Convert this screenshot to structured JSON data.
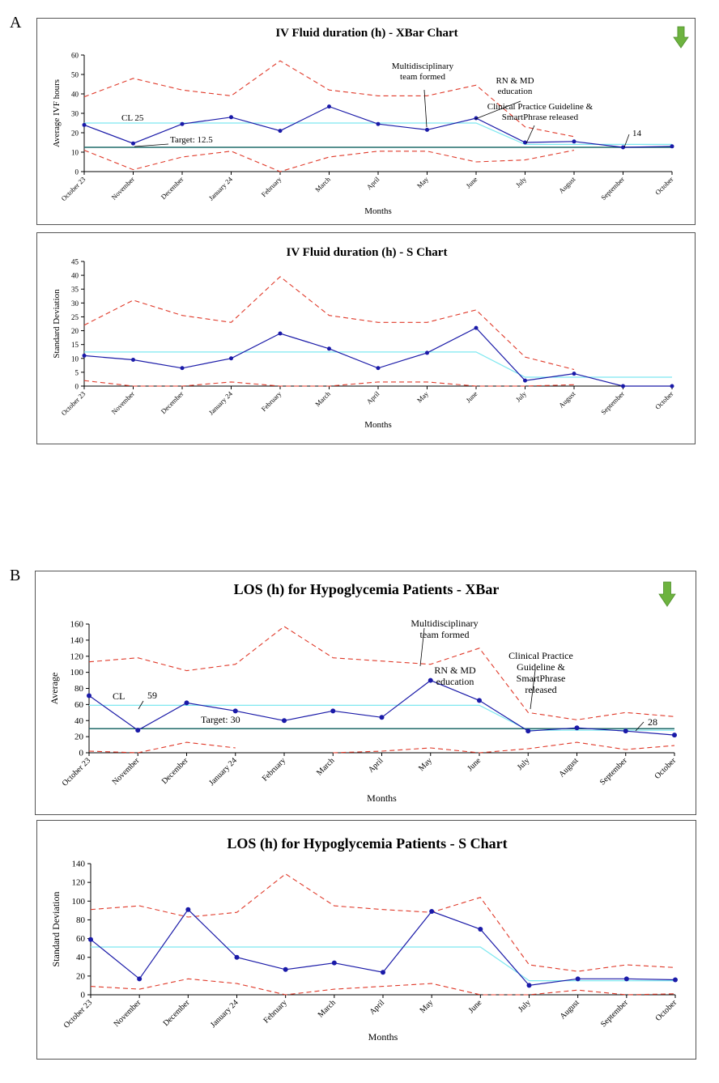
{
  "panel_labels": {
    "a": "A",
    "b": "B"
  },
  "months": [
    "October 23",
    "November",
    "December",
    "January 24",
    "February",
    "March",
    "April",
    "May",
    "June",
    "July",
    "August",
    "September",
    "October"
  ],
  "colors": {
    "series": "#1a1aa8",
    "limits": "#e03a2a",
    "center": "#7ee8f0",
    "target": "#1f6b6a",
    "arrow": "#6db33f"
  },
  "icons": {
    "trend": "down-arrow-icon"
  },
  "chart_data": [
    {
      "type": "line",
      "title": "IV Fluid duration (h) - XBar Chart",
      "xlabel": "Months",
      "ylabel": "Average IVF hours",
      "ylim": [
        0,
        60
      ],
      "yticks": [
        0,
        10,
        20,
        30,
        40,
        50,
        60
      ],
      "grid": false,
      "series": [
        {
          "values": [
            24,
            14.5,
            24.5,
            28,
            21,
            33.5,
            24.5,
            21.5,
            27.5,
            15,
            15.5,
            12.5,
            13
          ]
        },
        {
          "values": [
            38.5,
            48,
            42,
            39,
            57,
            42,
            39,
            39,
            44.5,
            23,
            18,
            null,
            null
          ]
        },
        {
          "values": [
            11,
            1,
            7.5,
            10.5,
            0,
            7.5,
            10.5,
            10.5,
            5,
            6,
            11,
            null,
            null
          ]
        },
        {
          "values": [
            25,
            25,
            25,
            25,
            25,
            25,
            25,
            25,
            25,
            14,
            14,
            14,
            14
          ]
        },
        {
          "values": [
            12.5,
            12.5,
            12.5,
            12.5,
            12.5,
            12.5,
            12.5,
            12.5,
            12.5,
            12.5,
            12.5,
            12.5,
            12.5
          ]
        }
      ],
      "annotations": [
        {
          "text": "CL 25"
        },
        {
          "text": "Target: 12.5"
        },
        {
          "text": "Multidisciplinary team formed"
        },
        {
          "text": "RN & MD education"
        },
        {
          "text": "Clinical Practice Guideline & SmartPhrase released"
        },
        {
          "text": "14"
        }
      ]
    },
    {
      "type": "line",
      "title": "IV Fluid duration (h) - S Chart",
      "xlabel": "Months",
      "ylabel": "Standard Deviation",
      "ylim": [
        0,
        45
      ],
      "yticks": [
        0,
        5,
        10,
        15,
        20,
        25,
        30,
        35,
        40,
        45
      ],
      "grid": false,
      "series": [
        {
          "values": [
            11,
            9.5,
            6.5,
            10,
            19,
            13.5,
            6.5,
            12,
            21,
            2,
            4.5,
            0,
            0
          ]
        },
        {
          "values": [
            22,
            31,
            25.5,
            23,
            39.5,
            25.5,
            23,
            23,
            27.5,
            10.5,
            6,
            null,
            null
          ]
        },
        {
          "values": [
            2,
            0,
            0,
            1.5,
            0,
            0,
            1.5,
            1.5,
            0,
            0,
            0.5,
            null,
            null
          ]
        },
        {
          "values": [
            12.3,
            12.3,
            12.3,
            12.3,
            12.3,
            12.3,
            12.3,
            12.3,
            12.3,
            3.2,
            3.2,
            3.2,
            3.2
          ]
        }
      ],
      "annotations": []
    },
    {
      "type": "line",
      "title": "LOS (h) for Hypoglycemia Patients - XBar",
      "xlabel": "Months",
      "ylabel": "Average",
      "ylim": [
        0,
        160
      ],
      "yticks": [
        0,
        20,
        40,
        60,
        80,
        100,
        120,
        140,
        160
      ],
      "grid": false,
      "series": [
        {
          "values": [
            71,
            28,
            62,
            52,
            40,
            52,
            44,
            90,
            65,
            27,
            31,
            27,
            22
          ]
        },
        {
          "values": [
            113,
            118,
            102,
            110,
            157,
            118,
            114,
            110,
            130,
            50,
            41,
            50,
            45
          ]
        },
        {
          "values": [
            2,
            0,
            13,
            6,
            null,
            0,
            2,
            6,
            0,
            5,
            13,
            4,
            9
          ]
        },
        {
          "values": [
            59,
            59,
            59,
            59,
            59,
            59,
            59,
            59,
            59,
            28,
            28,
            28,
            28
          ]
        },
        {
          "values": [
            30,
            30,
            30,
            30,
            30,
            30,
            30,
            30,
            30,
            30,
            30,
            30,
            30
          ]
        }
      ],
      "annotations": [
        {
          "text": "CL"
        },
        {
          "text": "59"
        },
        {
          "text": "Target: 30"
        },
        {
          "text": "Multidisciplinary team formed"
        },
        {
          "text": "RN & MD education"
        },
        {
          "text": "Clinical Practice Guideline & SmartPhrase released"
        },
        {
          "text": "28"
        }
      ]
    },
    {
      "type": "line",
      "title": "LOS (h) for Hypoglycemia Patients - S Chart",
      "xlabel": "Months",
      "ylabel": "Standard Deviation",
      "ylim": [
        0,
        140
      ],
      "yticks": [
        0,
        20,
        40,
        60,
        80,
        100,
        120,
        140
      ],
      "grid": false,
      "series": [
        {
          "values": [
            59,
            17,
            91,
            40,
            27,
            34,
            24,
            89,
            70,
            10,
            17,
            17,
            16
          ]
        },
        {
          "values": [
            91,
            95,
            83,
            88,
            129,
            95,
            91,
            88,
            104,
            32,
            25,
            32,
            29
          ]
        },
        {
          "values": [
            9,
            6,
            17,
            12,
            0,
            6,
            9,
            12,
            0,
            0,
            5,
            0,
            1
          ]
        },
        {
          "values": [
            51,
            51,
            51,
            51,
            51,
            51,
            51,
            51,
            51,
            15,
            15,
            15,
            15
          ]
        }
      ],
      "annotations": []
    }
  ]
}
